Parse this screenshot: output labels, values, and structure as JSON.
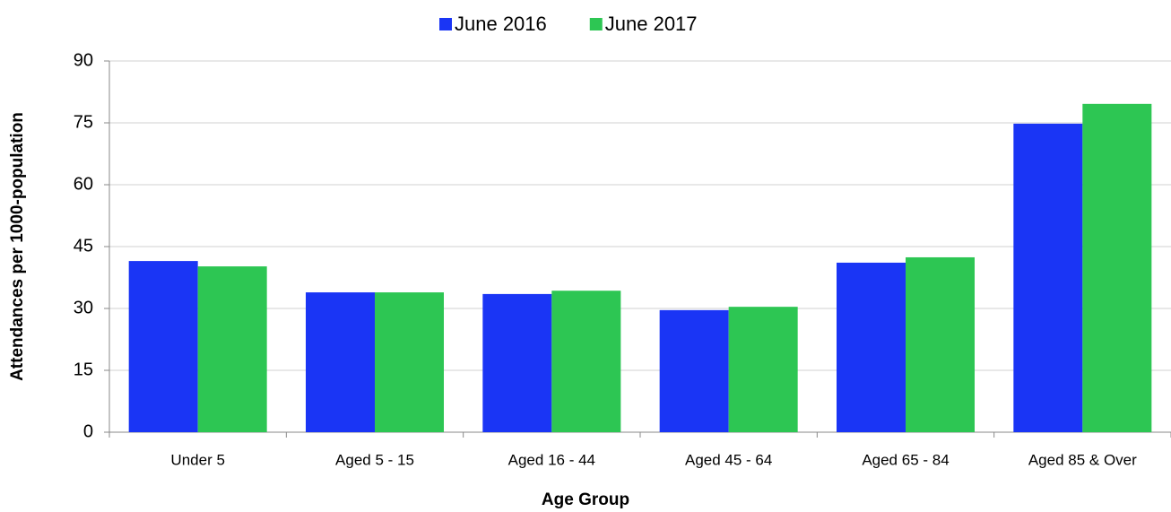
{
  "chart_data": {
    "type": "bar",
    "categories": [
      "Under 5",
      "Aged 5 - 15",
      "Aged 16 - 44",
      "Aged 45 - 64",
      "Aged 65 - 84",
      "Aged 85 & Over"
    ],
    "series": [
      {
        "name": "June 2016",
        "color": "#1a35f5",
        "values": [
          41.5,
          33.9,
          33.5,
          29.6,
          41.1,
          74.8
        ]
      },
      {
        "name": "June 2017",
        "color": "#2dc653",
        "values": [
          40.2,
          33.9,
          34.3,
          30.4,
          42.4,
          79.6
        ]
      }
    ],
    "x_label": "Age Group",
    "y_label": "Attendances per 1000-population",
    "ylim": [
      0,
      90
    ],
    "yticks": [
      0,
      15,
      30,
      45,
      60,
      75,
      90
    ],
    "grid": true,
    "legend": "top"
  }
}
